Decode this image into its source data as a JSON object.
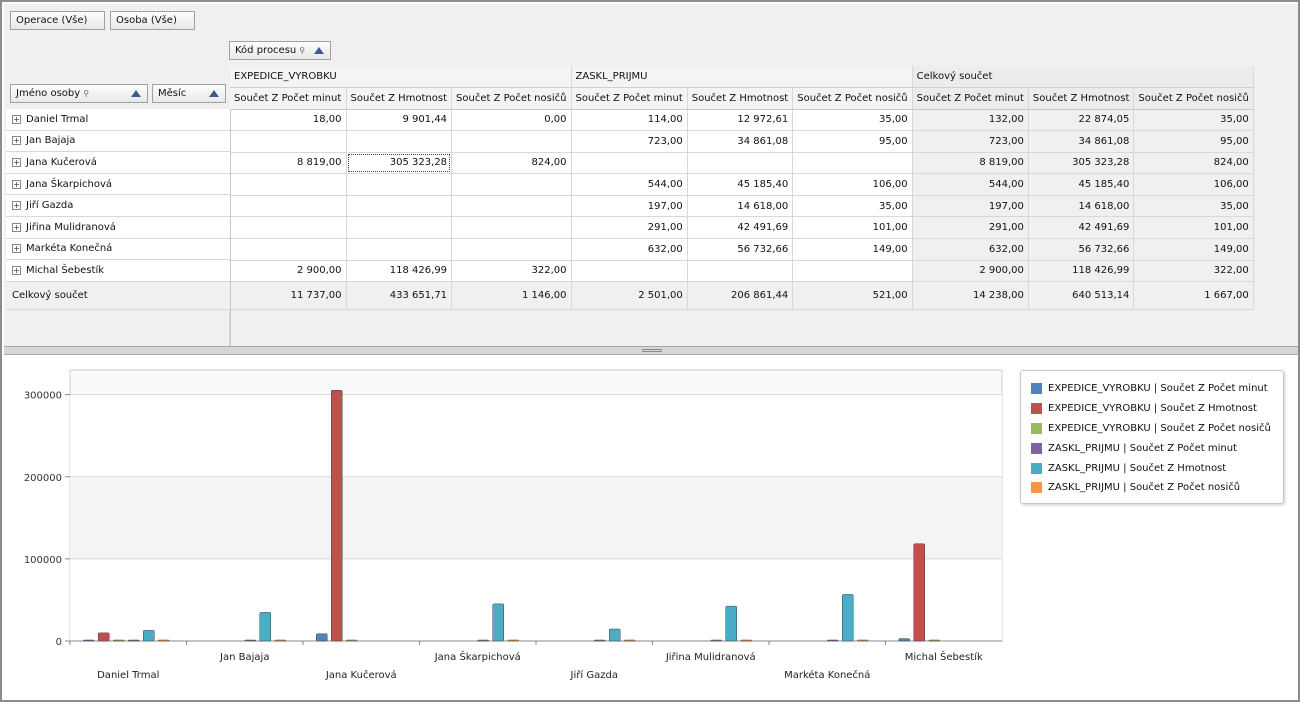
{
  "filters": {
    "operation": "Operace (Vše)",
    "person": "Osoba (Vše)"
  },
  "column_field": "Kód procesu",
  "row_fields": {
    "name": "Jméno osoby",
    "month": "Měsíc"
  },
  "groups": [
    "EXPEDICE_VYROBKU",
    "ZASKL_PRIJMU",
    "Celkový součet"
  ],
  "measures": [
    "Součet Z Počet minut",
    "Součet Z Hmotnost",
    "Součet Z Počet nosičů"
  ],
  "rows": [
    {
      "name": "Daniel Trmal",
      "cells": [
        "18,00",
        "9 901,44",
        "0,00",
        "114,00",
        "12 972,61",
        "35,00",
        "132,00",
        "22 874,05",
        "35,00"
      ]
    },
    {
      "name": "Jan Bajaja",
      "cells": [
        "",
        "",
        "",
        "723,00",
        "34 861,08",
        "95,00",
        "723,00",
        "34 861,08",
        "95,00"
      ]
    },
    {
      "name": "Jana Kučerová",
      "cells": [
        "8 819,00",
        "305 323,28",
        "824,00",
        "",
        "",
        "",
        "8 819,00",
        "305 323,28",
        "824,00"
      ]
    },
    {
      "name": "Jana Škarpichová",
      "cells": [
        "",
        "",
        "",
        "544,00",
        "45 185,40",
        "106,00",
        "544,00",
        "45 185,40",
        "106,00"
      ]
    },
    {
      "name": "Jiří Gazda",
      "cells": [
        "",
        "",
        "",
        "197,00",
        "14 618,00",
        "35,00",
        "197,00",
        "14 618,00",
        "35,00"
      ]
    },
    {
      "name": "Jiřina Mulidranová",
      "cells": [
        "",
        "",
        "",
        "291,00",
        "42 491,69",
        "101,00",
        "291,00",
        "42 491,69",
        "101,00"
      ]
    },
    {
      "name": "Markéta Konečná",
      "cells": [
        "",
        "",
        "",
        "632,00",
        "56 732,66",
        "149,00",
        "632,00",
        "56 732,66",
        "149,00"
      ]
    },
    {
      "name": "Michal Šebestík",
      "cells": [
        "2 900,00",
        "118 426,99",
        "322,00",
        "",
        "",
        "",
        "2 900,00",
        "118 426,99",
        "322,00"
      ]
    }
  ],
  "grand_total": {
    "label": "Celkový součet",
    "cells": [
      "11 737,00",
      "433 651,71",
      "1 146,00",
      "2 501,00",
      "206 861,44",
      "521,00",
      "14 238,00",
      "640 513,14",
      "1 667,00"
    ]
  },
  "chart_data": {
    "type": "bar",
    "categories": [
      "Daniel Trmal",
      "Jan Bajaja",
      "Jana Kučerová",
      "Jana Škarpichová",
      "Jiří Gazda",
      "Jiřina Mulidranová",
      "Markéta Konečná",
      "Michal Šebestík"
    ],
    "ylim": [
      0,
      330000
    ],
    "yticks": [
      0,
      100000,
      200000,
      300000
    ],
    "grid": true,
    "legend": "right",
    "series": [
      {
        "name": "EXPEDICE_VYROBKU | Součet Z Počet minut",
        "color": "#4f81bd",
        "values": [
          18,
          null,
          8819,
          null,
          null,
          null,
          null,
          2900
        ]
      },
      {
        "name": "EXPEDICE_VYROBKU | Součet Z Hmotnost",
        "color": "#c0504d",
        "values": [
          9901.44,
          null,
          305323.28,
          null,
          null,
          null,
          null,
          118426.99
        ]
      },
      {
        "name": "EXPEDICE_VYROBKU | Součet Z Počet nosičů",
        "color": "#9bbb59",
        "values": [
          0,
          null,
          824,
          null,
          null,
          null,
          null,
          322
        ]
      },
      {
        "name": "ZASKL_PRIJMU | Součet Z Počet minut",
        "color": "#8064a2",
        "values": [
          114,
          723,
          null,
          544,
          197,
          291,
          632,
          null
        ]
      },
      {
        "name": "ZASKL_PRIJMU | Součet Z Hmotnost",
        "color": "#4bacc6",
        "values": [
          12972.61,
          34861.08,
          null,
          45185.4,
          14618,
          42491.69,
          56732.66,
          null
        ]
      },
      {
        "name": "ZASKL_PRIJMU | Součet Z Počet nosičů",
        "color": "#f79646",
        "values": [
          35,
          95,
          null,
          106,
          35,
          101,
          149,
          null
        ]
      }
    ]
  }
}
